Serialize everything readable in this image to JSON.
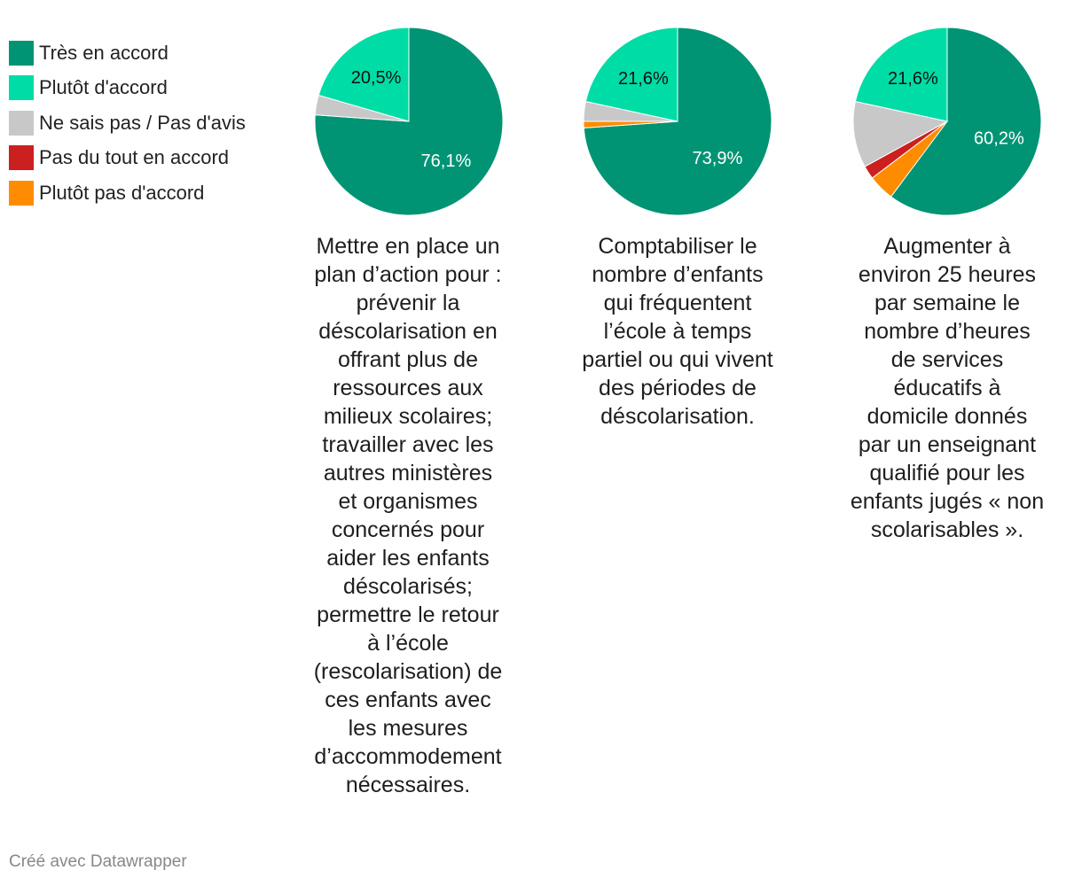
{
  "legend": [
    {
      "label": "Très en accord",
      "color": "#009474"
    },
    {
      "label": "Plutôt d'accord",
      "color": "#00dca6"
    },
    {
      "label": "Ne sais pas / Pas d'avis",
      "color": "#c8c8c8"
    },
    {
      "label": "Pas du tout en accord",
      "color": "#cc1f1f"
    },
    {
      "label": "Plutôt pas d'accord",
      "color": "#ff8c00"
    }
  ],
  "chart_data": [
    {
      "type": "pie",
      "caption": "Mettre en place un\nplan d’action pour :\nprévenir la\ndéscolarisation en\noffrant plus de\nressources aux\nmilieux scolaires;\ntravailler avec les\nautres ministères\net organismes\nconcernés  pour\naider les enfants\ndéscolarisés;\npermettre le retour\nà l’école\n(rescolarisation) de\nces enfants avec\nles mesures\nd’accommodement\nnécessaires.",
      "slices": [
        {
          "category": "Très en accord",
          "value": 76.1,
          "label": "76,1%",
          "label_color": "#ffffff"
        },
        {
          "category": "Plutôt d'accord",
          "value": 20.5,
          "label": "20,5%",
          "label_color": "#111111"
        },
        {
          "category": "Ne sais pas / Pas d'avis",
          "value": 3.4,
          "label": "",
          "label_color": "#111111"
        },
        {
          "category": "Pas du tout en accord",
          "value": 0,
          "label": "",
          "label_color": "#111111"
        },
        {
          "category": "Plutôt pas d'accord",
          "value": 0,
          "label": "",
          "label_color": "#111111"
        }
      ]
    },
    {
      "type": "pie",
      "caption": "Comptabiliser le\nnombre d’enfants\nqui fréquentent\nl’école à temps\npartiel ou qui vivent\ndes périodes de\ndéscolarisation.",
      "slices": [
        {
          "category": "Très en accord",
          "value": 73.9,
          "label": "73,9%",
          "label_color": "#ffffff"
        },
        {
          "category": "Plutôt d'accord",
          "value": 21.6,
          "label": "21,6%",
          "label_color": "#111111"
        },
        {
          "category": "Ne sais pas / Pas d'avis",
          "value": 3.4,
          "label": "",
          "label_color": "#111111"
        },
        {
          "category": "Pas du tout en accord",
          "value": 0,
          "label": "",
          "label_color": "#111111"
        },
        {
          "category": "Plutôt pas d'accord",
          "value": 1.1,
          "label": "",
          "label_color": "#111111"
        }
      ]
    },
    {
      "type": "pie",
      "caption": "Augmenter à\nenviron 25 heures\npar semaine le\nnombre d’heures\nde services\néducatifs à\ndomicile donnés\npar un enseignant\nqualifié pour les\nenfants jugés « non\nscolarisables ».",
      "slices": [
        {
          "category": "Très en accord",
          "value": 60.2,
          "label": "60,2%",
          "label_color": "#ffffff"
        },
        {
          "category": "Plutôt d'accord",
          "value": 21.6,
          "label": "21,6%",
          "label_color": "#111111"
        },
        {
          "category": "Ne sais pas / Pas d'avis",
          "value": 11.4,
          "label": "",
          "label_color": "#111111"
        },
        {
          "category": "Pas du tout en accord",
          "value": 2.3,
          "label": "",
          "label_color": "#111111"
        },
        {
          "category": "Plutôt pas d'accord",
          "value": 4.5,
          "label": "",
          "label_color": "#111111"
        }
      ]
    }
  ],
  "footer": {
    "text": "Créé avec Datawrapper"
  }
}
